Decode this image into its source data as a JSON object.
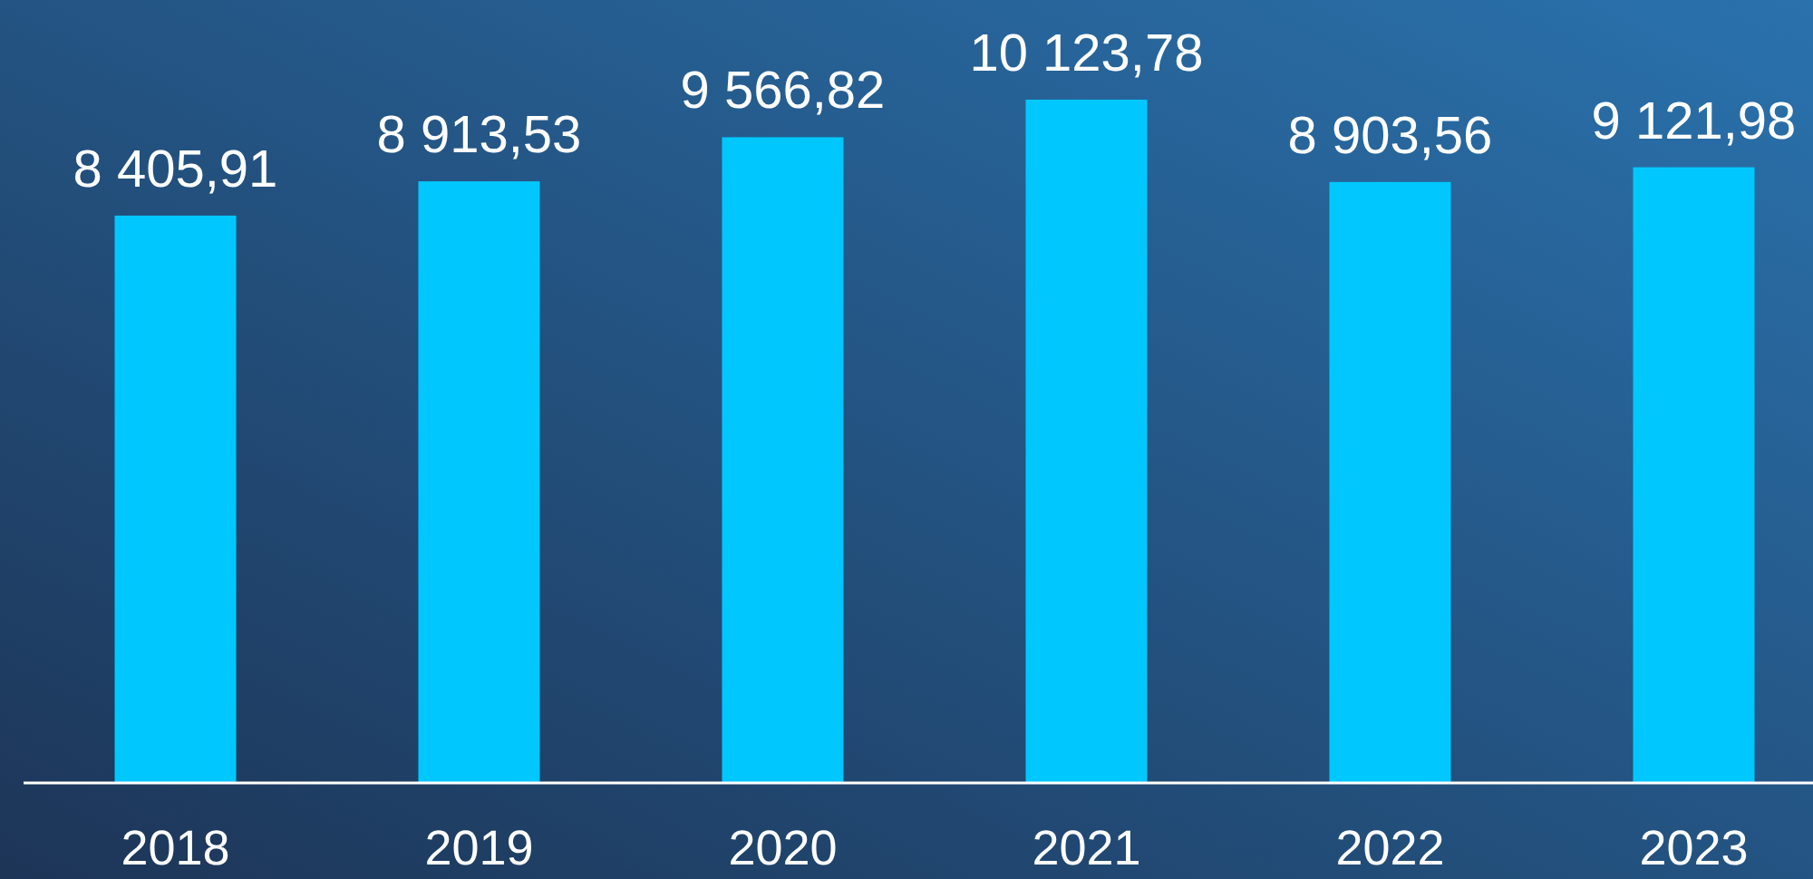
{
  "chart_data": {
    "type": "bar",
    "categories": [
      "2018",
      "2019",
      "2020",
      "2021",
      "2022",
      "2023"
    ],
    "values": [
      8405.91,
      8913.53,
      9566.82,
      10123.78,
      8903.56,
      9121.98
    ],
    "value_labels": [
      "8 405,91",
      "8 913,53",
      "9 566,82",
      "10 123,78",
      "8 903,56",
      "9 121,98"
    ],
    "color": "#00c8ff",
    "ylim": [
      0,
      11600
    ],
    "tick_labels": "x"
  }
}
